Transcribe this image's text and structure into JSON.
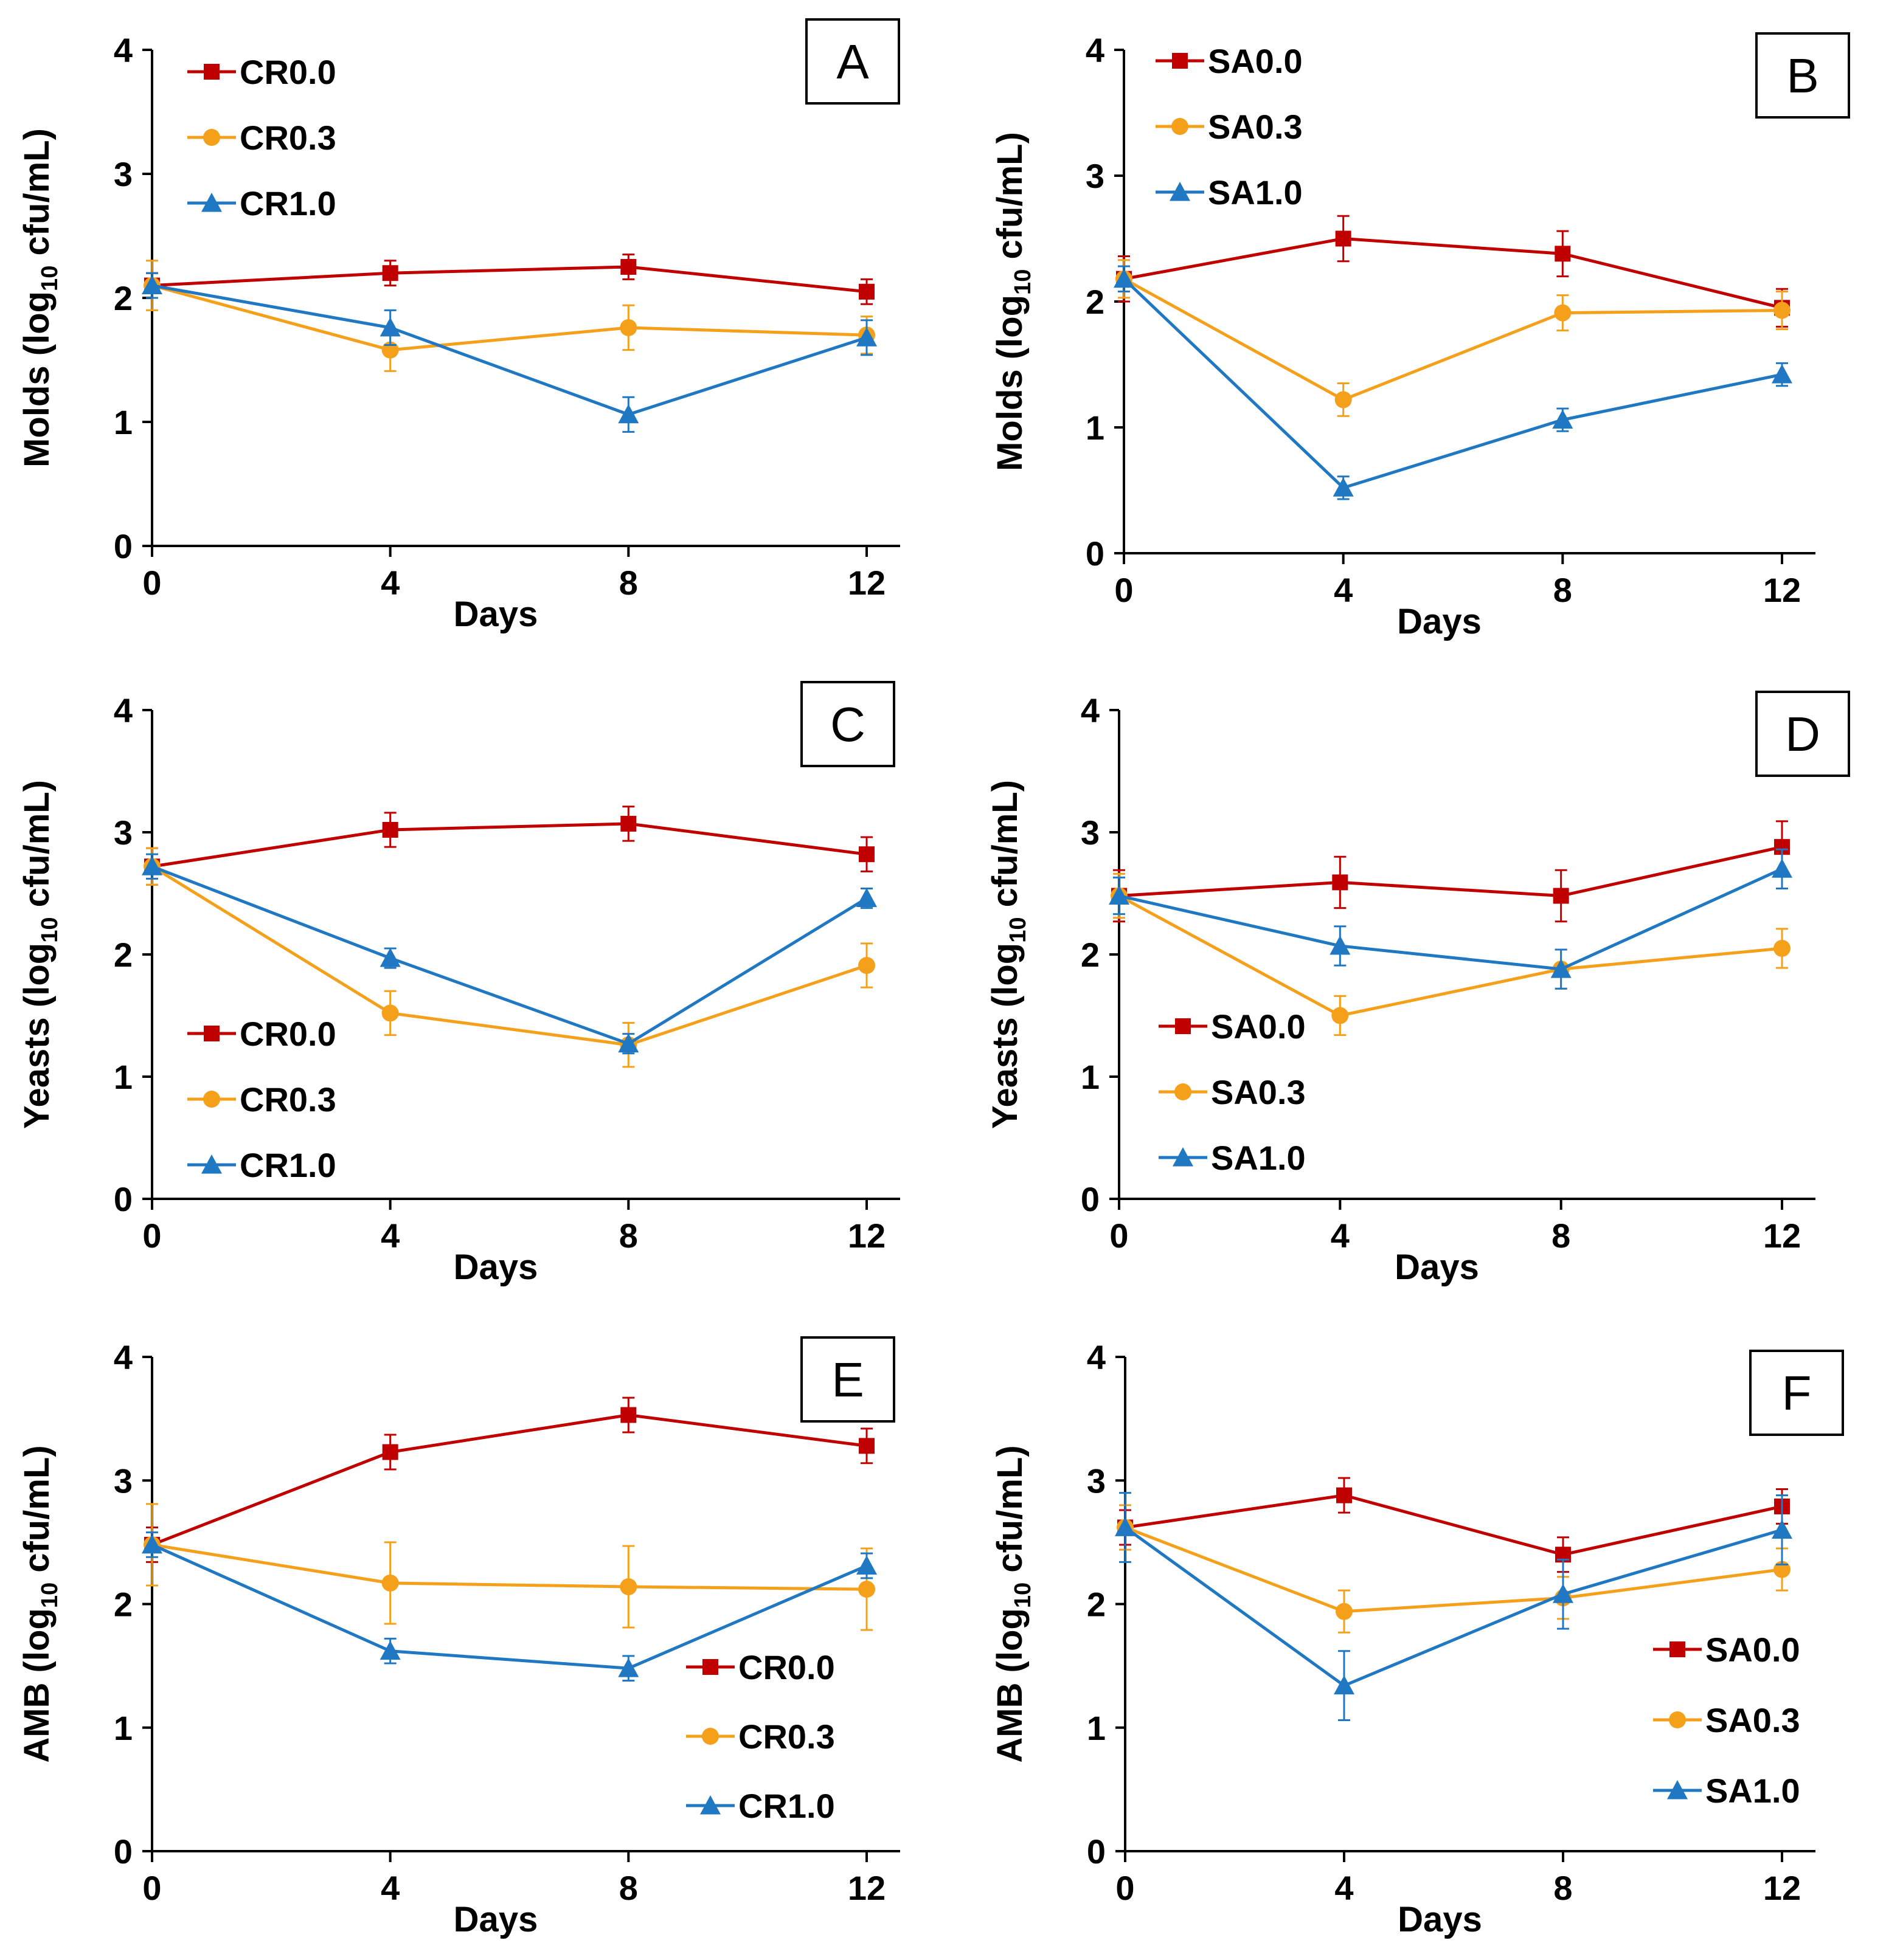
{
  "colors": {
    "red": "#C00000",
    "orange": "#F5A01A",
    "blue": "#1F78C1"
  },
  "chart_data": [
    {
      "id": "A",
      "type": "line",
      "panel_label": "A",
      "xlabel": "Days",
      "ylabel_main": "Molds (log",
      "ylabel_sub": "10",
      "ylabel_end": " cfu/mL)",
      "x": [
        0,
        4,
        8,
        12
      ],
      "x_tick_labels": [
        "0",
        "4",
        "8",
        "12"
      ],
      "ylim": [
        0,
        4
      ],
      "y_tick_labels": [
        "0",
        "1",
        "2",
        "3",
        "4"
      ],
      "legend_position": "top-left",
      "series": [
        {
          "name": "CR0.0",
          "color": "red",
          "marker": "square",
          "values": [
            2.1,
            2.2,
            2.25,
            2.05
          ],
          "errors": [
            0.1,
            0.1,
            0.1,
            0.1
          ]
        },
        {
          "name": "CR0.3",
          "color": "orange",
          "marker": "circle",
          "values": [
            2.1,
            1.58,
            1.76,
            1.7
          ],
          "errors": [
            0.2,
            0.17,
            0.18,
            0.15
          ]
        },
        {
          "name": "CR1.0",
          "color": "blue",
          "marker": "triangle",
          "values": [
            2.1,
            1.76,
            1.06,
            1.68
          ],
          "errors": [
            0.1,
            0.14,
            0.14,
            0.14
          ]
        }
      ]
    },
    {
      "id": "B",
      "type": "line",
      "panel_label": "B",
      "xlabel": "Days",
      "ylabel_main": "Molds (log",
      "ylabel_sub": "10",
      "ylabel_end": " cfu/mL)",
      "x": [
        0,
        4,
        8,
        12
      ],
      "x_tick_labels": [
        "0",
        "4",
        "8",
        "12"
      ],
      "ylim": [
        0,
        4
      ],
      "y_tick_labels": [
        "0",
        "1",
        "2",
        "3",
        "4"
      ],
      "legend_position": "top-left",
      "series": [
        {
          "name": "SA0.0",
          "color": "red",
          "marker": "square",
          "values": [
            2.18,
            2.5,
            2.38,
            1.95
          ],
          "errors": [
            0.18,
            0.18,
            0.18,
            0.15
          ]
        },
        {
          "name": "SA0.3",
          "color": "orange",
          "marker": "circle",
          "values": [
            2.18,
            1.22,
            1.91,
            1.93
          ],
          "errors": [
            0.15,
            0.13,
            0.14,
            0.15
          ]
        },
        {
          "name": "SA1.0",
          "color": "blue",
          "marker": "triangle",
          "values": [
            2.18,
            0.52,
            1.06,
            1.42
          ],
          "errors": [
            0.1,
            0.09,
            0.09,
            0.09
          ]
        }
      ]
    },
    {
      "id": "C",
      "type": "line",
      "panel_label": "C",
      "xlabel": "Days",
      "ylabel_main": "Yeasts (log",
      "ylabel_sub": "10",
      "ylabel_end": " cfu/mL)",
      "x": [
        0,
        4,
        8,
        12
      ],
      "x_tick_labels": [
        "0",
        "4",
        "8",
        "12"
      ],
      "ylim": [
        0,
        4
      ],
      "y_tick_labels": [
        "0",
        "1",
        "2",
        "3",
        "4"
      ],
      "legend_position": "bottom-left",
      "series": [
        {
          "name": "CR0.0",
          "color": "red",
          "marker": "square",
          "values": [
            2.72,
            3.02,
            3.07,
            2.82
          ],
          "errors": [
            0.15,
            0.14,
            0.14,
            0.14
          ]
        },
        {
          "name": "CR0.3",
          "color": "orange",
          "marker": "circle",
          "values": [
            2.72,
            1.52,
            1.26,
            1.91
          ],
          "errors": [
            0.15,
            0.18,
            0.18,
            0.18
          ]
        },
        {
          "name": "CR1.0",
          "color": "blue",
          "marker": "triangle",
          "values": [
            2.72,
            1.97,
            1.27,
            2.46
          ],
          "errors": [
            0.1,
            0.08,
            0.08,
            0.08
          ]
        }
      ]
    },
    {
      "id": "D",
      "type": "line",
      "panel_label": "D",
      "xlabel": "Days",
      "ylabel_main": "Yeasts (log",
      "ylabel_sub": "10",
      "ylabel_end": " cfu/mL)",
      "x": [
        0,
        4,
        8,
        12
      ],
      "x_tick_labels": [
        "0",
        "4",
        "8",
        "12"
      ],
      "ylim": [
        0,
        4
      ],
      "y_tick_labels": [
        "0",
        "1",
        "2",
        "3",
        "4"
      ],
      "legend_position": "bottom-left",
      "series": [
        {
          "name": "SA0.0",
          "color": "red",
          "marker": "square",
          "values": [
            2.48,
            2.59,
            2.48,
            2.88
          ],
          "errors": [
            0.21,
            0.21,
            0.21,
            0.21
          ]
        },
        {
          "name": "SA0.3",
          "color": "orange",
          "marker": "circle",
          "values": [
            2.48,
            1.5,
            1.88,
            2.05
          ],
          "errors": [
            0.18,
            0.16,
            0.16,
            0.16
          ]
        },
        {
          "name": "SA1.0",
          "color": "blue",
          "marker": "triangle",
          "values": [
            2.48,
            2.07,
            1.88,
            2.7
          ],
          "errors": [
            0.15,
            0.16,
            0.16,
            0.16
          ]
        }
      ]
    },
    {
      "id": "E",
      "type": "line",
      "panel_label": "E",
      "xlabel": "Days",
      "ylabel_main": "AMB (log",
      "ylabel_sub": "10",
      "ylabel_end": " cfu/mL)",
      "x": [
        0,
        4,
        8,
        12
      ],
      "x_tick_labels": [
        "0",
        "4",
        "8",
        "12"
      ],
      "ylim": [
        0,
        4
      ],
      "y_tick_labels": [
        "0",
        "1",
        "2",
        "3",
        "4"
      ],
      "legend_position": "bottom-right",
      "series": [
        {
          "name": "CR0.0",
          "color": "red",
          "marker": "square",
          "values": [
            2.48,
            3.23,
            3.53,
            3.28
          ],
          "errors": [
            0.14,
            0.14,
            0.14,
            0.14
          ]
        },
        {
          "name": "CR0.3",
          "color": "orange",
          "marker": "circle",
          "values": [
            2.48,
            2.17,
            2.14,
            2.12
          ],
          "errors": [
            0.33,
            0.33,
            0.33,
            0.33
          ]
        },
        {
          "name": "CR1.0",
          "color": "blue",
          "marker": "triangle",
          "values": [
            2.48,
            1.62,
            1.48,
            2.31
          ],
          "errors": [
            0.1,
            0.1,
            0.1,
            0.1
          ]
        }
      ]
    },
    {
      "id": "F",
      "type": "line",
      "panel_label": "F",
      "xlabel": "Days",
      "ylabel_main": "AMB (log",
      "ylabel_sub": "10",
      "ylabel_end": " cfu/mL)",
      "x": [
        0,
        4,
        8,
        12
      ],
      "x_tick_labels": [
        "0",
        "4",
        "8",
        "12"
      ],
      "ylim": [
        0,
        4
      ],
      "y_tick_labels": [
        "0",
        "1",
        "2",
        "3",
        "4"
      ],
      "legend_position": "bottom-right",
      "series": [
        {
          "name": "SA0.0",
          "color": "red",
          "marker": "square",
          "values": [
            2.62,
            2.88,
            2.4,
            2.79
          ],
          "errors": [
            0.14,
            0.14,
            0.14,
            0.14
          ]
        },
        {
          "name": "SA0.3",
          "color": "orange",
          "marker": "circle",
          "values": [
            2.62,
            1.94,
            2.05,
            2.28
          ],
          "errors": [
            0.18,
            0.17,
            0.17,
            0.17
          ]
        },
        {
          "name": "SA1.0",
          "color": "blue",
          "marker": "triangle",
          "values": [
            2.62,
            1.34,
            2.08,
            2.6
          ],
          "errors": [
            0.28,
            0.28,
            0.28,
            0.28
          ]
        }
      ]
    }
  ]
}
